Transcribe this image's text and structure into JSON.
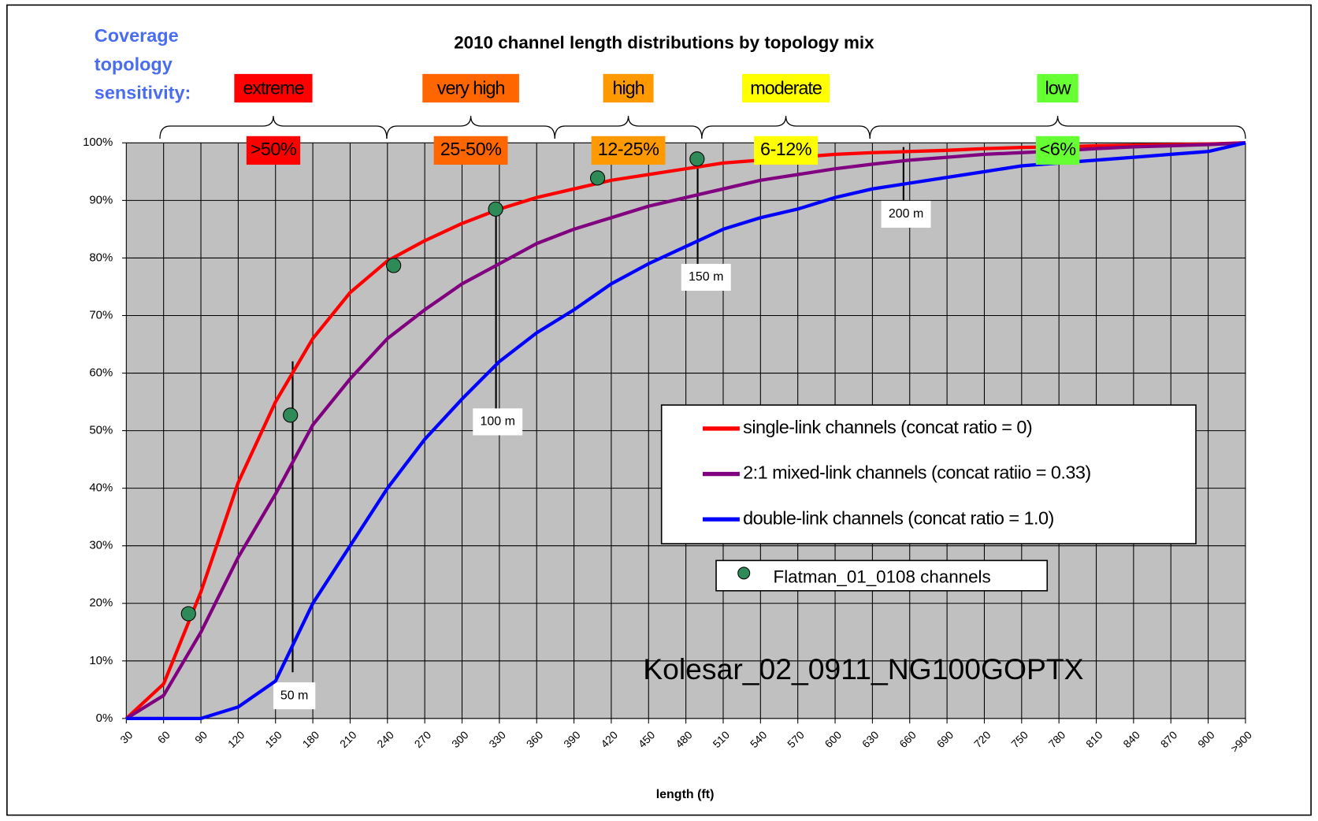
{
  "chart_data": {
    "type": "line",
    "title": "2010 channel length distributions by topology mix",
    "x_label": "length (ft)",
    "categories": [
      30,
      60,
      90,
      120,
      150,
      180,
      210,
      240,
      270,
      300,
      330,
      360,
      390,
      420,
      450,
      480,
      510,
      540,
      570,
      600,
      630,
      660,
      690,
      720,
      750,
      780,
      810,
      840,
      870,
      900,
      ">900"
    ],
    "ylim": [
      0,
      100
    ],
    "yticks": [
      {
        "value": 0,
        "label": "0%"
      },
      {
        "value": 10,
        "label": "10%"
      },
      {
        "value": 20,
        "label": "20%"
      },
      {
        "value": 30,
        "label": "30%"
      },
      {
        "value": 40,
        "label": "40%"
      },
      {
        "value": 50,
        "label": "50%"
      },
      {
        "value": 60,
        "label": "60%"
      },
      {
        "value": 70,
        "label": "70%"
      },
      {
        "value": 80,
        "label": "80%"
      },
      {
        "value": 90,
        "label": "90%"
      },
      {
        "value": 100,
        "label": "100%"
      }
    ],
    "grid": true,
    "series": [
      {
        "name": "single-link channels (concat ratio = 0)",
        "color": "#ff0000",
        "values": [
          0,
          6,
          22,
          41,
          55,
          66,
          74,
          79.5,
          83,
          86,
          88.5,
          90.5,
          92,
          93.5,
          94.5,
          95.5,
          96.5,
          97,
          97.5,
          98,
          98.3,
          98.5,
          98.7,
          99,
          99.2,
          99.3,
          99.5,
          99.6,
          99.7,
          99.8,
          100
        ]
      },
      {
        "name": "2:1 mixed-link channels (concat ratiio = 0.33)",
        "color": "#800080",
        "values": [
          0,
          4,
          15,
          28,
          39,
          51,
          59,
          66,
          71,
          75.5,
          79,
          82.5,
          85,
          87,
          89,
          90.5,
          92,
          93.5,
          94.5,
          95.5,
          96.3,
          97,
          97.5,
          98,
          98.3,
          98.6,
          99,
          99.3,
          99.5,
          99.7,
          100
        ]
      },
      {
        "name": "double-link channels (concat ratio = 1.0)",
        "color": "#0000ff",
        "values": [
          0,
          0,
          0,
          2,
          6.5,
          20,
          30,
          40,
          48.5,
          55.5,
          62,
          67,
          71,
          75.5,
          79,
          82,
          85,
          87,
          88.5,
          90.5,
          92,
          93,
          94,
          95,
          96,
          96.5,
          97,
          97.5,
          98,
          98.5,
          100
        ]
      }
    ],
    "points": {
      "name": "Flatman_01_0108 channels",
      "color": "#2e8b57",
      "x": [
        80,
        162,
        245,
        327,
        409,
        489
      ],
      "values": [
        18.2,
        52.7,
        78.7,
        88.5,
        93.9,
        97.2
      ]
    },
    "annotations": [
      "50 m",
      "100 m",
      "150 m",
      "200 m"
    ],
    "sensitivity": {
      "heading": [
        "Coverage",
        "topology",
        "sensitivity:"
      ],
      "bands": [
        {
          "name": "extreme",
          "range": ">50%",
          "color": "#ff0000"
        },
        {
          "name": "very high",
          "range": "25-50%",
          "color": "#ff6600"
        },
        {
          "name": "high",
          "range": "12-25%",
          "color": "#ff9900"
        },
        {
          "name": "moderate",
          "range": "6-12%",
          "color": "#ffff00"
        },
        {
          "name": "low",
          "range": "<6%",
          "color": "#66ff33"
        }
      ]
    },
    "watermark": "Kolesar_02_0911_NG100GOPTX"
  }
}
